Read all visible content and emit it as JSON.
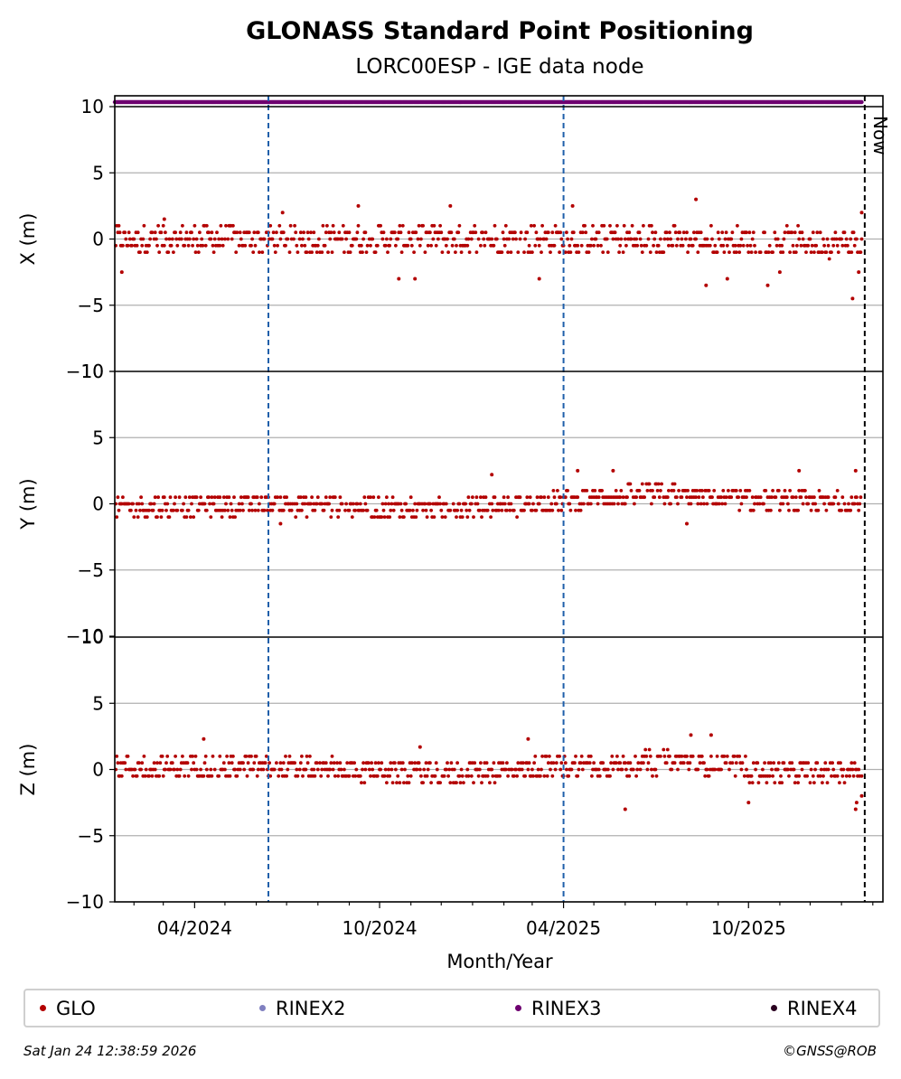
{
  "title": "GLONASS Standard Point Positioning",
  "subtitle": "LORC00ESP - IGE data node",
  "now_label": "Now",
  "xlabel": "Month/Year",
  "footer_left": "Sat Jan 24 12:38:59 2026",
  "footer_right": "©GNSS@ROB",
  "colors": {
    "glo": "#b30000",
    "rinex2": "#8080c0",
    "rinex3": "#6e0070",
    "rinex4": "#2a0020",
    "event_line": "#1f5faa",
    "grid": "#b0b0b0"
  },
  "legend": [
    {
      "label": "GLO",
      "color": "#b30000"
    },
    {
      "label": "RINEX2",
      "color": "#8080c0"
    },
    {
      "label": "RINEX3",
      "color": "#6e0070"
    },
    {
      "label": "RINEX4",
      "color": "#2a0020"
    }
  ],
  "chart_data": {
    "type": "scatter",
    "x_range": [
      "2024-01-13",
      "2026-02-11"
    ],
    "x_ticks": [
      {
        "date": "2024-04-01",
        "label": "04/2024"
      },
      {
        "date": "2024-10-01",
        "label": "10/2024"
      },
      {
        "date": "2025-04-01",
        "label": "04/2025"
      },
      {
        "date": "2025-10-01",
        "label": "10/2025"
      }
    ],
    "x_minor_ticks": [
      "2024-02-01",
      "2024-03-01",
      "2024-05-01",
      "2024-06-01",
      "2024-07-01",
      "2024-08-01",
      "2024-09-01",
      "2024-11-01",
      "2024-12-01",
      "2025-01-01",
      "2025-02-01",
      "2025-03-01",
      "2025-05-01",
      "2025-06-01",
      "2025-07-01",
      "2025-08-01",
      "2025-09-01",
      "2025-11-01",
      "2025-12-01",
      "2026-01-01",
      "2026-02-01"
    ],
    "event_lines": [
      "2024-06-13",
      "2025-04-01"
    ],
    "now_date": "2026-01-24",
    "rinex3_coverage": {
      "start": "2024-01-13",
      "end": "2026-01-21"
    },
    "grid": true,
    "legend_placement": "bottom",
    "panels": [
      {
        "ylabel": "X (m)",
        "ylim": [
          -10,
          10
        ],
        "yticks": [
          -10,
          -5,
          0,
          5,
          10
        ],
        "series": "GLO",
        "trend": [
          [
            "2024-01-13",
            0.0
          ],
          [
            "2024-12-01",
            0.0
          ],
          [
            "2025-06-01",
            0.0
          ],
          [
            "2026-01-21",
            -0.3
          ]
        ],
        "spread": 1.0,
        "outliers": [
          [
            "2024-01-20",
            -2.5
          ],
          [
            "2024-03-02",
            1.5
          ],
          [
            "2024-06-27",
            2.0
          ],
          [
            "2024-09-10",
            2.5
          ],
          [
            "2024-10-20",
            -3.0
          ],
          [
            "2024-11-05",
            -3.0
          ],
          [
            "2024-12-10",
            2.5
          ],
          [
            "2025-03-08",
            -3.0
          ],
          [
            "2025-04-10",
            2.5
          ],
          [
            "2025-08-10",
            3.0
          ],
          [
            "2025-08-20",
            -3.5
          ],
          [
            "2025-09-10",
            -3.0
          ],
          [
            "2025-10-20",
            -3.5
          ],
          [
            "2025-11-01",
            -2.5
          ],
          [
            "2026-01-12",
            -4.5
          ],
          [
            "2026-01-18",
            -2.5
          ],
          [
            "2026-01-21",
            2.0
          ]
        ]
      },
      {
        "ylabel": "Y (m)",
        "ylim": [
          -10,
          10
        ],
        "yticks": [
          -10,
          -5,
          0,
          5,
          10
        ],
        "series": "GLO",
        "trend": [
          [
            "2024-01-13",
            -0.3
          ],
          [
            "2024-06-01",
            0.0
          ],
          [
            "2024-12-01",
            -0.4
          ],
          [
            "2025-04-01",
            0.2
          ],
          [
            "2025-07-01",
            0.8
          ],
          [
            "2025-10-01",
            0.2
          ],
          [
            "2026-01-21",
            0.0
          ]
        ],
        "spread": 0.75,
        "outliers": [
          [
            "2024-06-25",
            -1.5
          ],
          [
            "2025-01-20",
            2.2
          ],
          [
            "2025-04-15",
            2.5
          ],
          [
            "2025-05-20",
            2.5
          ],
          [
            "2025-08-01",
            -1.5
          ],
          [
            "2025-11-20",
            2.5
          ],
          [
            "2026-01-15",
            2.5
          ]
        ]
      },
      {
        "ylabel": "Z (m)",
        "ylim": [
          -10,
          10
        ],
        "yticks": [
          -10,
          -5,
          0,
          5,
          10
        ],
        "series": "GLO",
        "trend": [
          [
            "2024-01-13",
            0.2
          ],
          [
            "2024-06-01",
            0.2
          ],
          [
            "2024-12-01",
            -0.3
          ],
          [
            "2025-04-01",
            0.2
          ],
          [
            "2025-08-01",
            0.6
          ],
          [
            "2025-11-01",
            -0.3
          ],
          [
            "2026-01-21",
            0.0
          ]
        ],
        "spread": 0.8,
        "outliers": [
          [
            "2024-04-10",
            2.3
          ],
          [
            "2024-11-10",
            1.7
          ],
          [
            "2025-02-25",
            2.3
          ],
          [
            "2025-06-01",
            -3.0
          ],
          [
            "2025-08-05",
            2.6
          ],
          [
            "2025-08-25",
            2.6
          ],
          [
            "2025-10-01",
            -2.5
          ],
          [
            "2026-01-15",
            -3.0
          ],
          [
            "2026-01-16",
            -2.5
          ],
          [
            "2026-01-21",
            -2.0
          ]
        ]
      }
    ]
  }
}
